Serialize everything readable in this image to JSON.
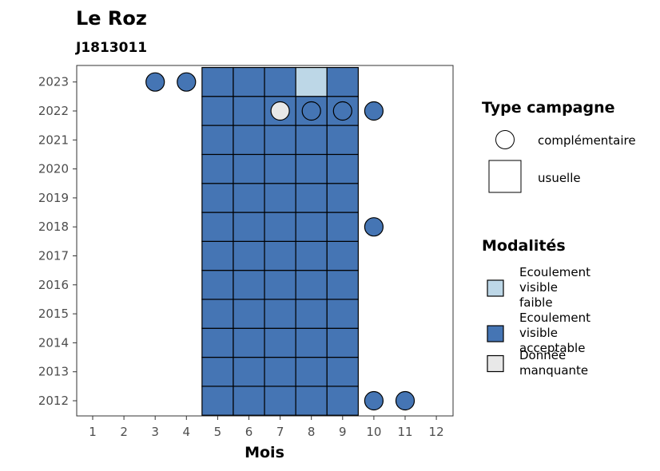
{
  "chart_data": {
    "type": "heatmap",
    "title": "Le Roz",
    "subtitle": "J1813011",
    "xlabel": "Mois",
    "ylabel": "",
    "x_ticks": [
      "1",
      "2",
      "3",
      "4",
      "5",
      "6",
      "7",
      "8",
      "9",
      "10",
      "11",
      "12"
    ],
    "y_ticks": [
      "2012",
      "2013",
      "2014",
      "2015",
      "2016",
      "2017",
      "2018",
      "2019",
      "2020",
      "2021",
      "2022",
      "2023"
    ],
    "xlim": [
      1,
      12
    ],
    "ylim": [
      2012,
      2023
    ],
    "grid": false,
    "legend_position": "right",
    "modalites": {
      "faible": {
        "label": "Ecoulement visible faible",
        "color": "#bdd7e7"
      },
      "acceptable": {
        "label": "Ecoulement visible acceptable",
        "color": "#4575b4"
      },
      "manquante": {
        "label": "Donnée manquante",
        "color": "#e8e8e8"
      }
    },
    "points": [
      {
        "x": 3,
        "y": 2023,
        "type": "complementaire",
        "modalite": "acceptable"
      },
      {
        "x": 4,
        "y": 2023,
        "type": "complementaire",
        "modalite": "acceptable"
      },
      {
        "x": 5,
        "y": 2023,
        "type": "usuelle",
        "modalite": "acceptable"
      },
      {
        "x": 6,
        "y": 2023,
        "type": "usuelle",
        "modalite": "acceptable"
      },
      {
        "x": 7,
        "y": 2023,
        "type": "usuelle",
        "modalite": "acceptable"
      },
      {
        "x": 8,
        "y": 2023,
        "type": "usuelle",
        "modalite": "faible"
      },
      {
        "x": 9,
        "y": 2023,
        "type": "usuelle",
        "modalite": "acceptable"
      },
      {
        "x": 5,
        "y": 2022,
        "type": "usuelle",
        "modalite": "acceptable"
      },
      {
        "x": 6,
        "y": 2022,
        "type": "usuelle",
        "modalite": "acceptable"
      },
      {
        "x": 7,
        "y": 2022,
        "type": "usuelle",
        "modalite": "acceptable"
      },
      {
        "x": 8,
        "y": 2022,
        "type": "usuelle",
        "modalite": "acceptable"
      },
      {
        "x": 9,
        "y": 2022,
        "type": "usuelle",
        "modalite": "acceptable"
      },
      {
        "x": 7,
        "y": 2022,
        "type": "complementaire",
        "modalite": "manquante"
      },
      {
        "x": 8,
        "y": 2022,
        "type": "complementaire",
        "modalite": "acceptable"
      },
      {
        "x": 9,
        "y": 2022,
        "type": "complementaire",
        "modalite": "acceptable"
      },
      {
        "x": 10,
        "y": 2022,
        "type": "complementaire",
        "modalite": "acceptable"
      },
      {
        "x": 10,
        "y": 2018,
        "type": "complementaire",
        "modalite": "acceptable"
      },
      {
        "x": 10,
        "y": 2012,
        "type": "complementaire",
        "modalite": "acceptable"
      },
      {
        "x": 11,
        "y": 2012,
        "type": "complementaire",
        "modalite": "acceptable"
      }
    ],
    "usuelle_block": {
      "months": [
        5,
        6,
        7,
        8,
        9
      ],
      "years": [
        2012,
        2021
      ],
      "modalite": "acceptable"
    }
  },
  "legend": {
    "type_title": "Type campagne",
    "type_items": [
      {
        "key": "complementaire",
        "label": "complémentaire"
      },
      {
        "key": "usuelle",
        "label": "usuelle"
      }
    ],
    "modalites_title": "Modalités",
    "modalites_items": [
      {
        "key": "faible",
        "lines": [
          "Ecoulement",
          "visible",
          "faible"
        ]
      },
      {
        "key": "acceptable",
        "lines": [
          "Ecoulement",
          "visible",
          "acceptable"
        ]
      },
      {
        "key": "manquante",
        "lines": [
          "Donnée",
          "manquante"
        ]
      }
    ]
  }
}
